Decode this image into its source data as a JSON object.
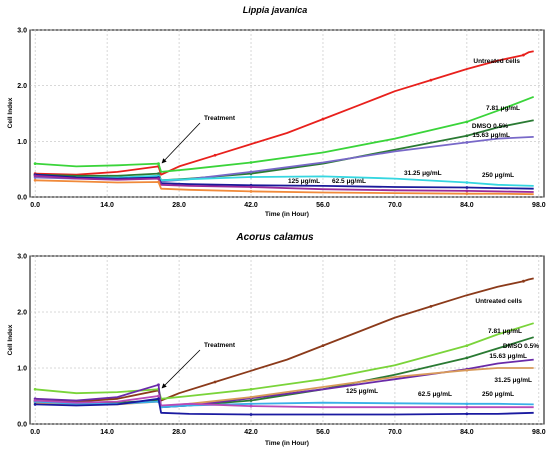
{
  "chart_data": [
    {
      "type": "line",
      "title": "Lippia javanica",
      "xlabel": "Time (in Hour)",
      "ylabel": "Cell Index",
      "xlim": [
        -1,
        99
      ],
      "ylim": [
        0,
        3.0
      ],
      "xticks": [
        "0.0",
        "14.0",
        "28.0",
        "42.0",
        "56.0",
        "70.0",
        "84.0",
        "98.0"
      ],
      "yticks": [
        "0.0",
        "1.0",
        "2.0",
        "3.0"
      ],
      "grid": true,
      "annotations": {
        "treatment": "Treatment",
        "treatment_x": 24
      },
      "series": [
        {
          "name": "Untreated cells",
          "color": "#e8201c",
          "x": [
            0,
            8,
            16,
            24,
            24.5,
            28,
            35,
            42,
            49,
            56,
            63,
            70,
            77,
            84,
            90,
            95,
            96,
            97
          ],
          "y": [
            0.42,
            0.4,
            0.45,
            0.55,
            0.4,
            0.55,
            0.75,
            0.95,
            1.15,
            1.4,
            1.65,
            1.9,
            2.1,
            2.3,
            2.45,
            2.55,
            2.6,
            2.62
          ]
        },
        {
          "name": "7.81 μg/mL",
          "color": "#3ad43a",
          "x": [
            0,
            8,
            16,
            24,
            24.5,
            30,
            42,
            56,
            70,
            84,
            90,
            97
          ],
          "y": [
            0.6,
            0.55,
            0.57,
            0.6,
            0.45,
            0.5,
            0.62,
            0.8,
            1.05,
            1.35,
            1.55,
            1.8
          ]
        },
        {
          "name": "DMSO 0.5%",
          "color": "#2a7a33",
          "x": [
            0,
            8,
            16,
            24,
            24.5,
            30,
            42,
            56,
            70,
            84,
            90,
            97
          ],
          "y": [
            0.4,
            0.38,
            0.38,
            0.42,
            0.3,
            0.33,
            0.42,
            0.6,
            0.85,
            1.1,
            1.25,
            1.38
          ]
        },
        {
          "name": "15.63 μg/mL",
          "color": "#7868c8",
          "x": [
            0,
            8,
            16,
            24,
            24.5,
            30,
            42,
            56,
            70,
            84,
            90,
            97
          ],
          "y": [
            0.35,
            0.33,
            0.34,
            0.36,
            0.28,
            0.32,
            0.45,
            0.62,
            0.82,
            0.98,
            1.05,
            1.08
          ]
        },
        {
          "name": "31.25 μg/mL",
          "color": "#35d6e0",
          "x": [
            0,
            8,
            16,
            24,
            24.5,
            30,
            42,
            56,
            70,
            84,
            90,
            97
          ],
          "y": [
            0.38,
            0.35,
            0.35,
            0.38,
            0.3,
            0.32,
            0.36,
            0.37,
            0.33,
            0.26,
            0.22,
            0.2
          ]
        },
        {
          "name": "62.5 μg/mL",
          "color": "#1a1a9a",
          "x": [
            0,
            8,
            16,
            24,
            24.5,
            30,
            42,
            56,
            70,
            84,
            90,
            97
          ],
          "y": [
            0.4,
            0.35,
            0.33,
            0.35,
            0.25,
            0.23,
            0.21,
            0.2,
            0.18,
            0.17,
            0.16,
            0.15
          ]
        },
        {
          "name": "125 μg/mL",
          "color": "#9a2a9a",
          "x": [
            0,
            8,
            16,
            24,
            24.5,
            30,
            42,
            56,
            70,
            84,
            90,
            97
          ],
          "y": [
            0.38,
            0.33,
            0.31,
            0.33,
            0.22,
            0.2,
            0.18,
            0.14,
            0.12,
            0.11,
            0.1,
            0.09
          ]
        },
        {
          "name": "250 μg/mL",
          "color": "#f08a3a",
          "x": [
            0,
            8,
            16,
            24,
            24.5,
            30,
            42,
            56,
            70,
            84,
            90,
            97
          ],
          "y": [
            0.3,
            0.28,
            0.26,
            0.27,
            0.15,
            0.13,
            0.1,
            0.08,
            0.07,
            0.06,
            0.06,
            0.05
          ]
        }
      ]
    },
    {
      "type": "line",
      "title": "Acorus calamus",
      "xlabel": "Time (in Hour)",
      "ylabel": "Cell Index",
      "xlim": [
        -1,
        99
      ],
      "ylim": [
        0,
        3.0
      ],
      "xticks": [
        "0.0",
        "14.0",
        "28.0",
        "42.0",
        "56.0",
        "70.0",
        "84.0",
        "98.0"
      ],
      "yticks": [
        "0.0",
        "1.0",
        "2.0",
        "3.0"
      ],
      "grid": true,
      "annotations": {
        "treatment": "Treatment",
        "treatment_x": 24
      },
      "series": [
        {
          "name": "Untreated cells",
          "color": "#8b3a1a",
          "x": [
            0,
            8,
            16,
            24,
            24.5,
            28,
            35,
            42,
            49,
            56,
            63,
            70,
            77,
            84,
            90,
            95,
            96,
            97
          ],
          "y": [
            0.42,
            0.4,
            0.45,
            0.6,
            0.42,
            0.55,
            0.75,
            0.95,
            1.15,
            1.4,
            1.65,
            1.9,
            2.1,
            2.3,
            2.45,
            2.55,
            2.58,
            2.6
          ]
        },
        {
          "name": "7.81 μg/mL",
          "color": "#7ad43a",
          "x": [
            0,
            8,
            16,
            24,
            24.5,
            30,
            42,
            56,
            70,
            84,
            90,
            97
          ],
          "y": [
            0.62,
            0.55,
            0.57,
            0.62,
            0.45,
            0.5,
            0.62,
            0.8,
            1.05,
            1.4,
            1.6,
            1.8
          ]
        },
        {
          "name": "DMSO 0.5%",
          "color": "#2a7a33",
          "x": [
            0,
            8,
            16,
            24,
            24.5,
            30,
            42,
            56,
            70,
            84,
            90,
            97
          ],
          "y": [
            0.4,
            0.38,
            0.38,
            0.42,
            0.3,
            0.33,
            0.42,
            0.62,
            0.88,
            1.18,
            1.35,
            1.55
          ]
        },
        {
          "name": "15.63 μg/mL",
          "color": "#6a2aa8",
          "x": [
            0,
            8,
            16,
            24,
            24.5,
            30,
            42,
            56,
            70,
            84,
            90,
            97
          ],
          "y": [
            0.45,
            0.42,
            0.48,
            0.7,
            0.3,
            0.33,
            0.46,
            0.62,
            0.8,
            0.98,
            1.08,
            1.15
          ]
        },
        {
          "name": "31.25 μg/mL",
          "color": "#d89a5a",
          "x": [
            0,
            8,
            16,
            24,
            24.5,
            30,
            42,
            56,
            70,
            84,
            90,
            97
          ],
          "y": [
            0.38,
            0.35,
            0.35,
            0.4,
            0.32,
            0.36,
            0.48,
            0.66,
            0.84,
            0.96,
            1.0,
            1.0
          ]
        },
        {
          "name": "62.5 μg/mL",
          "color": "#3ab0e8",
          "x": [
            0,
            8,
            16,
            24,
            24.5,
            30,
            42,
            56,
            70,
            84,
            90,
            97
          ],
          "y": [
            0.4,
            0.36,
            0.36,
            0.4,
            0.3,
            0.33,
            0.36,
            0.38,
            0.37,
            0.36,
            0.36,
            0.35
          ]
        },
        {
          "name": "125 μg/mL",
          "color": "#b84ab8",
          "x": [
            0,
            8,
            16,
            24,
            24.5,
            30,
            42,
            56,
            70,
            84,
            90,
            97
          ],
          "y": [
            0.42,
            0.38,
            0.4,
            0.5,
            0.33,
            0.36,
            0.32,
            0.3,
            0.3,
            0.3,
            0.3,
            0.3
          ]
        },
        {
          "name": "250 μg/mL",
          "color": "#1a1aa0",
          "x": [
            0,
            8,
            16,
            24,
            24.5,
            30,
            42,
            56,
            70,
            84,
            90,
            97
          ],
          "y": [
            0.35,
            0.33,
            0.35,
            0.45,
            0.2,
            0.18,
            0.17,
            0.17,
            0.17,
            0.18,
            0.18,
            0.2
          ]
        }
      ]
    }
  ],
  "labels": {
    "top": [
      {
        "text": "Untreated cells",
        "series": 0
      },
      {
        "text": "7.81 μg/mL",
        "series": 1
      },
      {
        "text": "DMSO 0.5%",
        "series": 2
      },
      {
        "text": "15.63 μg/mL",
        "series": 3
      },
      {
        "text": "31.25 μg/mL",
        "series": 4
      },
      {
        "text": "62.5 μg/mL",
        "series": 5
      },
      {
        "text": "125 μg/mL",
        "series": 6
      },
      {
        "text": "250 μg/mL",
        "series": 7
      }
    ],
    "bottom": [
      {
        "text": "Untreated cells",
        "series": 0
      },
      {
        "text": "7.81 μg/mL",
        "series": 1
      },
      {
        "text": "DMSO 0.5%",
        "series": 2
      },
      {
        "text": "15.63 μg/mL",
        "series": 3
      },
      {
        "text": "31.25 μg/mL",
        "series": 4
      },
      {
        "text": "62.5 μg/mL",
        "series": 5
      },
      {
        "text": "125 μg/mL",
        "series": 6
      },
      {
        "text": "250 μg/mL",
        "series": 7
      }
    ]
  }
}
